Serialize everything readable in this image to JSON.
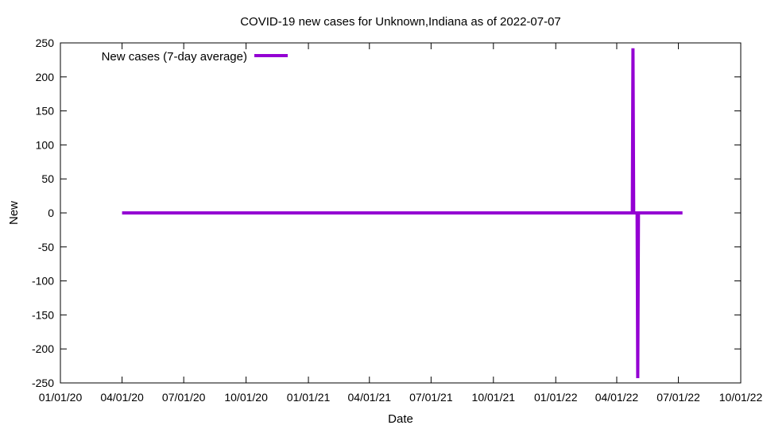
{
  "chart_data": {
    "type": "line",
    "title": "COVID-19 new cases for Unknown,Indiana as of 2022-07-07",
    "xlabel": "Date",
    "ylabel": "New",
    "xlim": [
      "2020-01-01",
      "2022-10-01"
    ],
    "ylim": [
      -250,
      250
    ],
    "yticks": [
      -250,
      -200,
      -150,
      -100,
      -50,
      0,
      50,
      100,
      150,
      200,
      250
    ],
    "xticks": [
      "2020-01-01",
      "2020-04-01",
      "2020-07-01",
      "2020-10-01",
      "2021-01-01",
      "2021-04-01",
      "2021-07-01",
      "2021-10-01",
      "2022-01-01",
      "2022-04-01",
      "2022-07-01",
      "2022-10-01"
    ],
    "xtick_labels": [
      "01/01/20",
      "04/01/20",
      "07/01/20",
      "10/01/20",
      "01/01/21",
      "04/01/21",
      "07/01/21",
      "10/01/21",
      "01/01/22",
      "04/01/22",
      "07/01/22",
      "10/01/22"
    ],
    "legend_position": "top-left",
    "grid": false,
    "series": [
      {
        "name": "New cases (7-day average)",
        "color": "#9400d3",
        "points": [
          [
            "2020-04-01",
            0
          ],
          [
            "2022-04-20",
            0
          ],
          [
            "2022-04-24",
            0
          ],
          [
            "2022-04-25",
            242
          ],
          [
            "2022-04-26",
            0
          ],
          [
            "2022-04-27",
            0
          ],
          [
            "2022-05-01",
            0
          ],
          [
            "2022-05-02",
            -243
          ],
          [
            "2022-05-03",
            0
          ],
          [
            "2022-07-07",
            0
          ]
        ]
      }
    ]
  }
}
